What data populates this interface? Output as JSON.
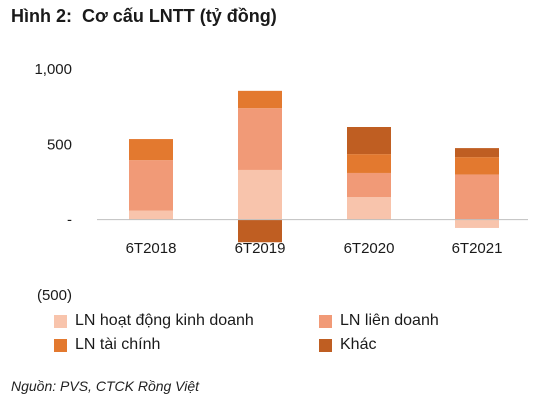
{
  "title": "Hình 2:  Cơ cấu LNTT (tỷ đồng)",
  "source": "Nguồn: PVS, CTCK Rồng Việt",
  "chart_data": {
    "type": "bar",
    "stacked": true,
    "categories": [
      "6T2018",
      "6T2019",
      "6T2020",
      "6T2021"
    ],
    "series": [
      {
        "name": "LN hoạt động kinh doanh",
        "color": "#F8C4AC",
        "values": [
          60,
          330,
          150,
          -55
        ]
      },
      {
        "name": "LN liên doanh",
        "color": "#F19A77",
        "values": [
          335,
          410,
          160,
          300
        ]
      },
      {
        "name": "LN tài chính",
        "color": "#E3792F",
        "values": [
          140,
          115,
          125,
          115
        ]
      },
      {
        "name": "Khác",
        "color": "#BF5E22",
        "values": [
          0,
          -150,
          180,
          60
        ]
      }
    ],
    "ylim": [
      -500,
      1000
    ],
    "yticks": [
      1000,
      500,
      0,
      -500
    ],
    "ytick_labels": [
      "1,000",
      "500",
      "-",
      "(500)"
    ],
    "legend_position": "bottom",
    "grid": false
  }
}
